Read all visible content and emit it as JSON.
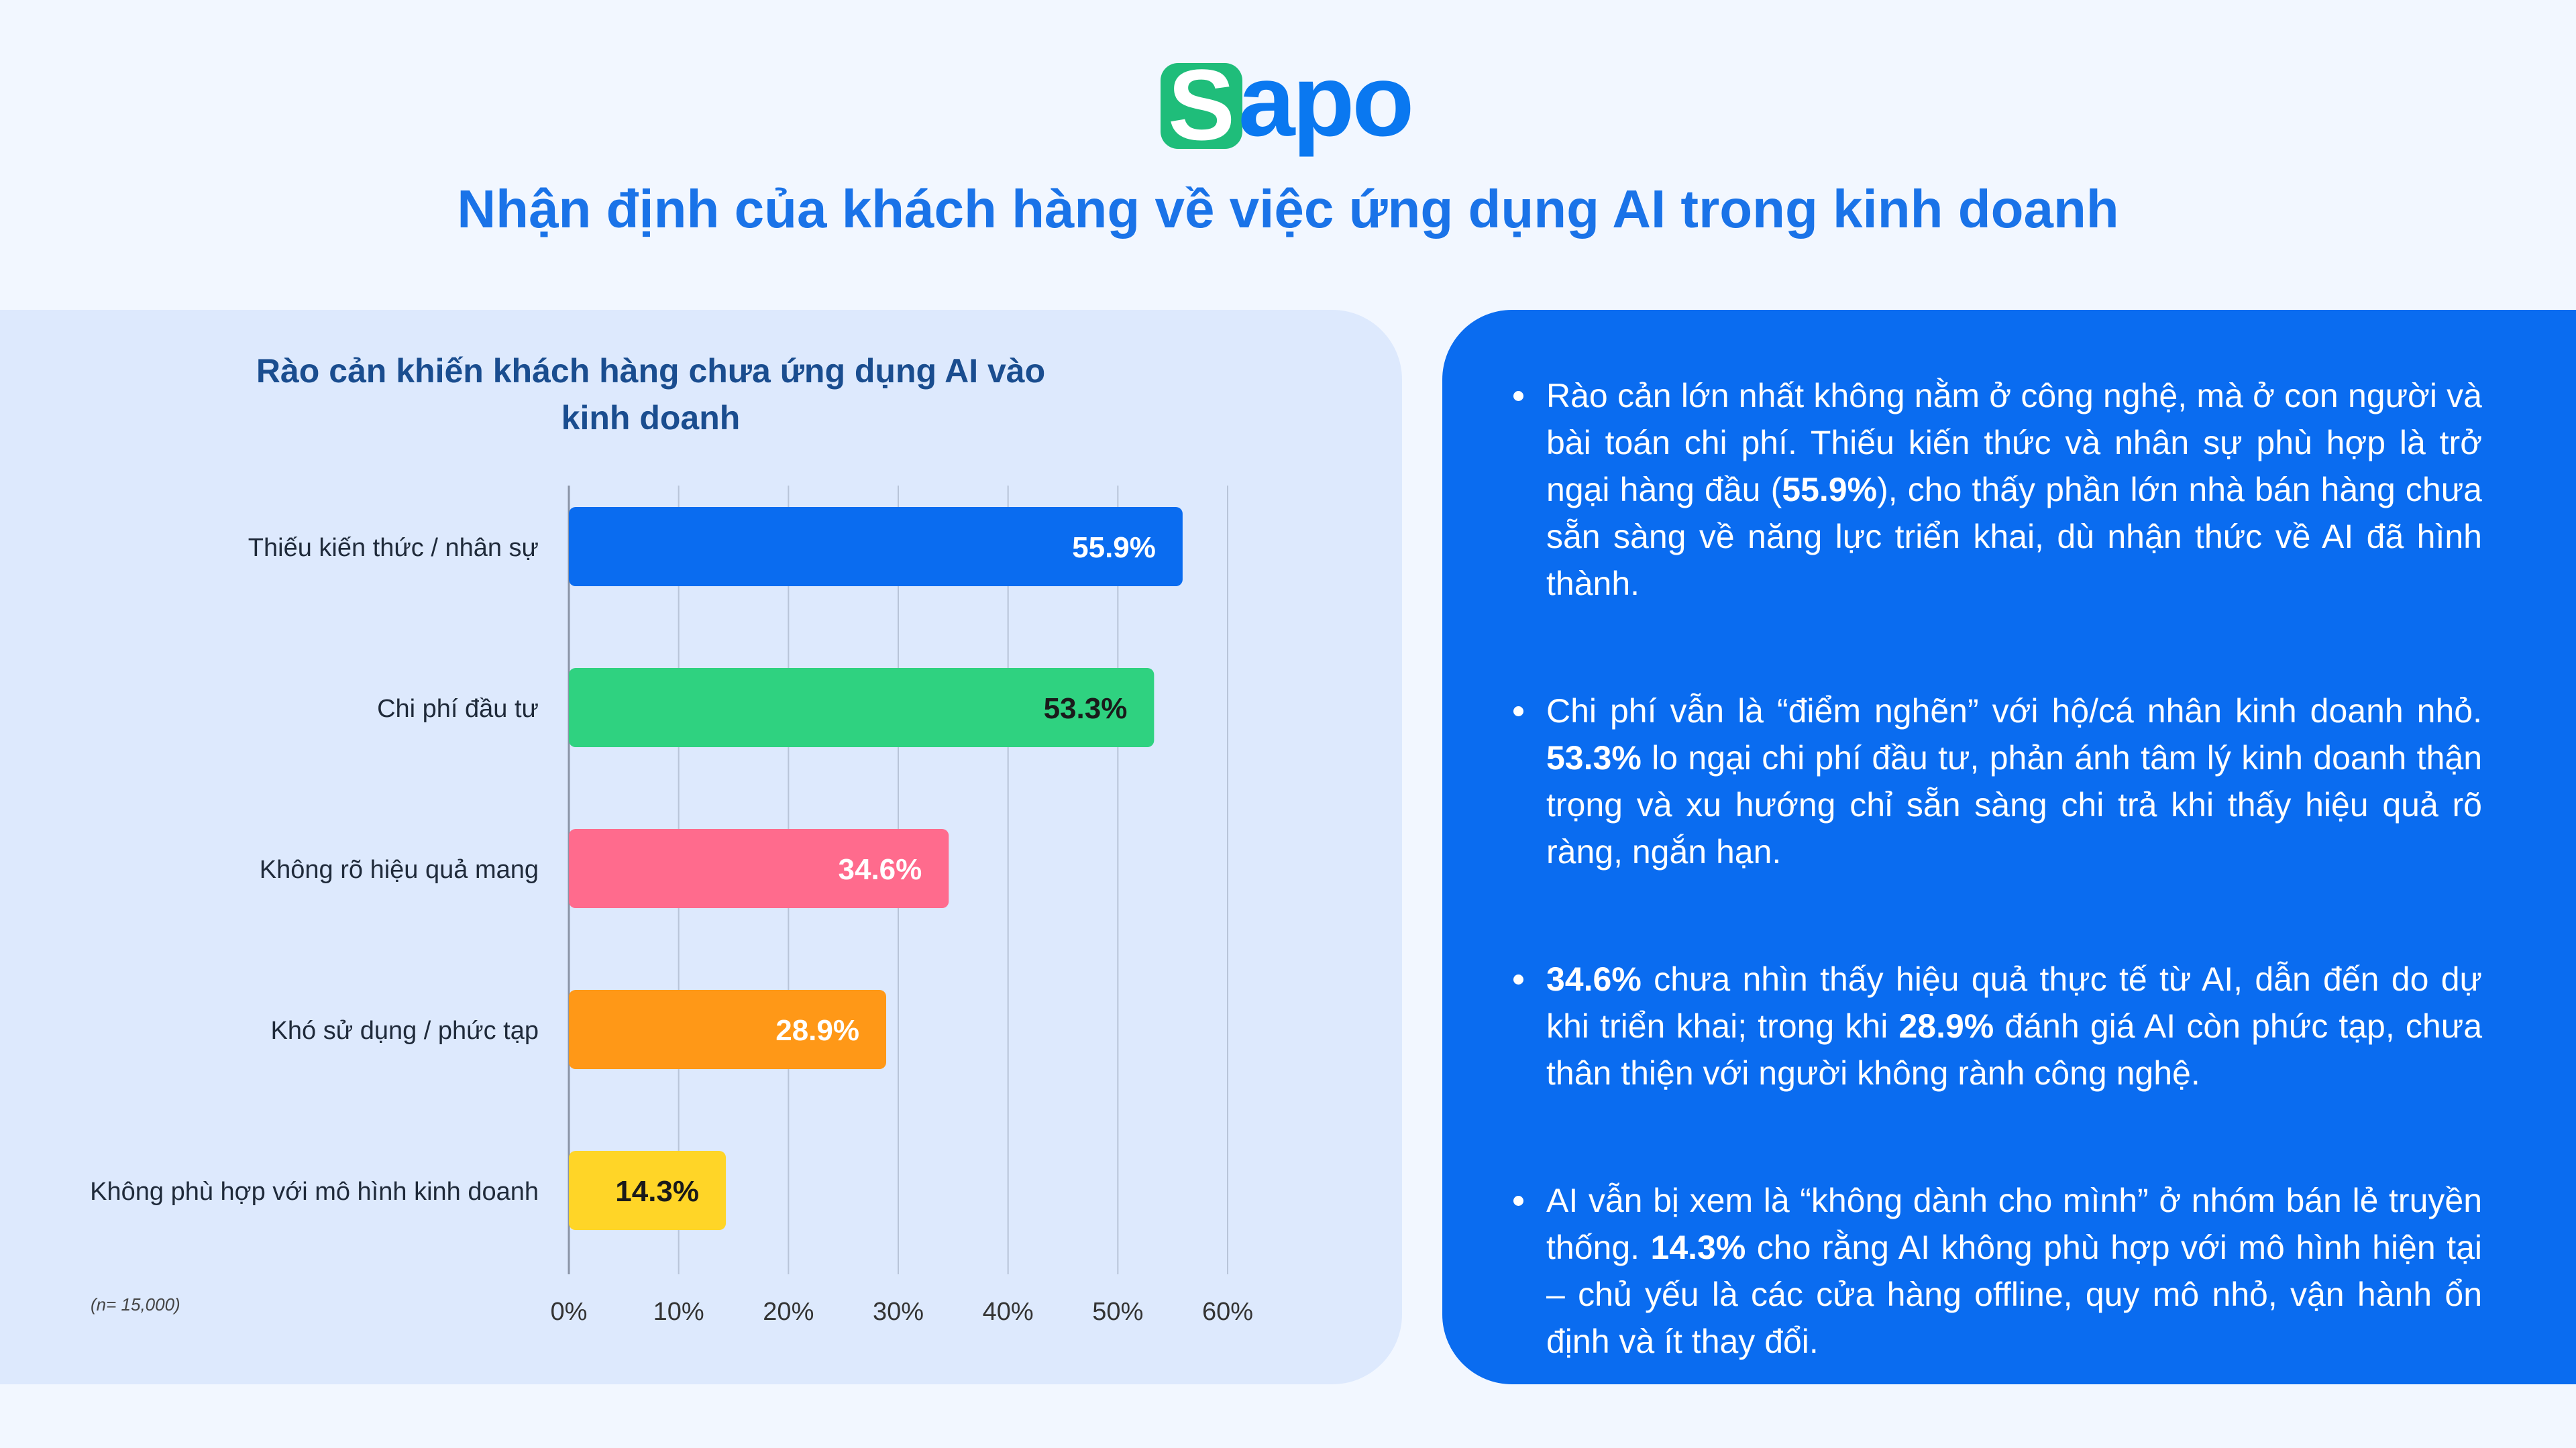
{
  "brand": {
    "logo_first": "S",
    "logo_rest": "apo",
    "logo_color": "#0a78f0",
    "logo_accent": "#1fbd7a"
  },
  "page_title": "Nhận định của khách hàng về việc ứng dụng AI trong kinh doanh",
  "chart_data": {
    "type": "bar",
    "orientation": "horizontal",
    "title": "Rào cản khiến khách hàng chưa ứng dụng AI vào kinh doanh",
    "categories": [
      "Thiếu kiến thức / nhân sự",
      "Chi phí đầu tư",
      "Không rõ hiệu quả mang",
      "Khó sử dụng / phức tạp",
      "Không phù hợp với mô hình kinh doanh"
    ],
    "values": [
      55.9,
      53.3,
      34.6,
      28.9,
      14.3
    ],
    "value_labels": [
      "55.9%",
      "53.3%",
      "34.6%",
      "28.9%",
      "14.3%"
    ],
    "colors": [
      "#0a6cf0",
      "#2fd280",
      "#ff6b8d",
      "#ff9817",
      "#ffd527"
    ],
    "label_colors": [
      "#ffffff",
      "#1a1a1a",
      "#ffffff",
      "#ffffff",
      "#1a1a1a"
    ],
    "xlim": [
      0,
      60
    ],
    "ticks": [
      0,
      10,
      20,
      30,
      40,
      50,
      60
    ],
    "tick_labels": [
      "0%",
      "10%",
      "20%",
      "30%",
      "40%",
      "50%",
      "60%"
    ],
    "grid": true,
    "note": "(n= 15,000)"
  },
  "insights": [
    [
      {
        "t": "Rào cản lớn nhất không nằm ở công nghệ, mà ở con người và bài toán chi phí. Thiếu kiến thức và nhân sự phù hợp là trở ngại hàng đầu ("
      },
      {
        "t": "55.9%",
        "b": true
      },
      {
        "t": "), cho thấy phần lớn nhà bán hàng chưa sẵn sàng về năng lực triển khai, dù nhận thức về AI đã hình thành."
      }
    ],
    [
      {
        "t": "Chi phí vẫn là “điểm nghẽn” với hộ/cá nhân kinh doanh nhỏ. "
      },
      {
        "t": "53.3%",
        "b": true
      },
      {
        "t": " lo ngại chi phí đầu tư, phản ánh tâm lý kinh doanh thận trọng và xu hướng chỉ sẵn sàng chi trả khi thấy hiệu quả rõ ràng, ngắn hạn."
      }
    ],
    [
      {
        "t": "34.6%",
        "b": true
      },
      {
        "t": " chưa nhìn thấy hiệu quả thực tế từ AI, dẫn đến do dự khi triển khai; trong khi "
      },
      {
        "t": "28.9%",
        "b": true
      },
      {
        "t": " đánh giá AI còn phức tạp, chưa thân thiện với người không rành công nghệ."
      }
    ],
    [
      {
        "t": "AI vẫn bị xem là “không dành cho mình” ở nhóm bán lẻ truyền thống. "
      },
      {
        "t": "14.3%",
        "b": true
      },
      {
        "t": " cho rằng AI không phù hợp với mô hình hiện tại – chủ yếu là các cửa hàng offline, quy mô nhỏ, vận hành ổn định và ít thay đổi."
      }
    ]
  ]
}
